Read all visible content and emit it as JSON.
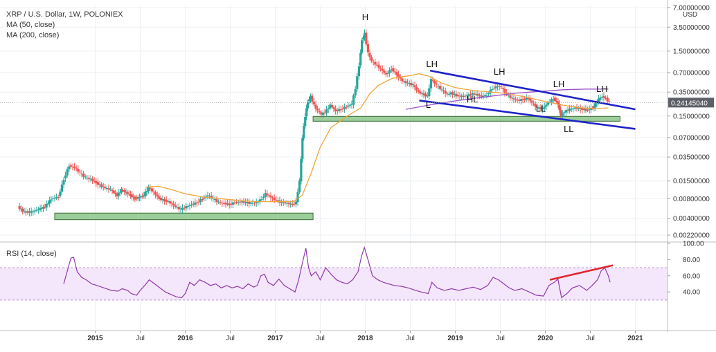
{
  "chart_data": {
    "type": "candlestick",
    "legend": {
      "title": "XRP / U.S. Dollar, 1W, POLONIEX",
      "ma50": "MA (50, close)",
      "ma200": "MA (200, close)"
    },
    "price_axis": {
      "unit": "USD",
      "scale": "log",
      "ticks": [
        "7.00000000",
        "3.50000000",
        "1.50000000",
        "0.70000000",
        "0.35000000",
        "0.15000000",
        "0.07000000",
        "0.03500000",
        "0.01500000",
        "0.00800000",
        "0.00400000",
        "0.00220000"
      ],
      "tick_values": [
        7.0,
        3.5,
        1.5,
        0.7,
        0.35,
        0.15,
        0.07,
        0.035,
        0.015,
        0.008,
        0.004,
        0.0022
      ],
      "current_price_label": "0.24145040",
      "current_price": 0.2414504
    },
    "time_axis": {
      "labels": [
        "2015",
        "Jul",
        "2016",
        "Jul",
        "2017",
        "Jul",
        "2018",
        "Jul",
        "2019",
        "Jul",
        "2020",
        "Jul",
        "2021"
      ],
      "label_times": [
        2015.0,
        2015.5,
        2016.0,
        2016.5,
        2017.0,
        2017.5,
        2018.0,
        2018.5,
        2019.0,
        2019.5,
        2020.0,
        2020.5,
        2021.0
      ],
      "range": [
        2014.05,
        2021.25
      ]
    },
    "price_series": [
      [
        2014.15,
        0.006
      ],
      [
        2014.22,
        0.005
      ],
      [
        2014.3,
        0.005
      ],
      [
        2014.38,
        0.0055
      ],
      [
        2014.45,
        0.006
      ],
      [
        2014.52,
        0.008
      ],
      [
        2014.6,
        0.0085
      ],
      [
        2014.66,
        0.016
      ],
      [
        2014.72,
        0.026
      ],
      [
        2014.78,
        0.024
      ],
      [
        2014.84,
        0.02
      ],
      [
        2014.9,
        0.017
      ],
      [
        2014.96,
        0.016
      ],
      [
        2015.02,
        0.014
      ],
      [
        2015.1,
        0.012
      ],
      [
        2015.18,
        0.011
      ],
      [
        2015.25,
        0.009
      ],
      [
        2015.3,
        0.011
      ],
      [
        2015.35,
        0.01
      ],
      [
        2015.4,
        0.009
      ],
      [
        2015.45,
        0.008
      ],
      [
        2015.5,
        0.0085
      ],
      [
        2015.55,
        0.009
      ],
      [
        2015.6,
        0.012
      ],
      [
        2015.66,
        0.01
      ],
      [
        2015.72,
        0.008
      ],
      [
        2015.78,
        0.0075
      ],
      [
        2015.84,
        0.007
      ],
      [
        2015.9,
        0.006
      ],
      [
        2015.96,
        0.0055
      ],
      [
        2016.02,
        0.006
      ],
      [
        2016.08,
        0.0065
      ],
      [
        2016.14,
        0.007
      ],
      [
        2016.2,
        0.008
      ],
      [
        2016.26,
        0.009
      ],
      [
        2016.32,
        0.008
      ],
      [
        2016.38,
        0.007
      ],
      [
        2016.44,
        0.0068
      ],
      [
        2016.5,
        0.0065
      ],
      [
        2016.56,
        0.007
      ],
      [
        2016.62,
        0.0072
      ],
      [
        2016.68,
        0.007
      ],
      [
        2016.74,
        0.0068
      ],
      [
        2016.8,
        0.007
      ],
      [
        2016.86,
        0.008
      ],
      [
        2016.9,
        0.0095
      ],
      [
        2016.96,
        0.0085
      ],
      [
        2017.02,
        0.0075
      ],
      [
        2017.08,
        0.007
      ],
      [
        2017.14,
        0.0068
      ],
      [
        2017.2,
        0.0065
      ],
      [
        2017.24,
        0.007
      ],
      [
        2017.28,
        0.015
      ],
      [
        2017.31,
        0.07
      ],
      [
        2017.34,
        0.15
      ],
      [
        2017.37,
        0.25
      ],
      [
        2017.4,
        0.3
      ],
      [
        2017.44,
        0.22
      ],
      [
        2017.48,
        0.18
      ],
      [
        2017.52,
        0.16
      ],
      [
        2017.56,
        0.17
      ],
      [
        2017.62,
        0.22
      ],
      [
        2017.68,
        0.18
      ],
      [
        2017.74,
        0.19
      ],
      [
        2017.8,
        0.21
      ],
      [
        2017.86,
        0.23
      ],
      [
        2017.9,
        0.4
      ],
      [
        2017.94,
        0.9
      ],
      [
        2017.97,
        2.2
      ],
      [
        2018.0,
        2.8
      ],
      [
        2018.04,
        1.4
      ],
      [
        2018.08,
        1.05
      ],
      [
        2018.12,
        0.95
      ],
      [
        2018.18,
        0.8
      ],
      [
        2018.24,
        0.65
      ],
      [
        2018.3,
        0.8
      ],
      [
        2018.36,
        0.65
      ],
      [
        2018.42,
        0.52
      ],
      [
        2018.48,
        0.48
      ],
      [
        2018.54,
        0.45
      ],
      [
        2018.6,
        0.35
      ],
      [
        2018.66,
        0.32
      ],
      [
        2018.7,
        0.3
      ],
      [
        2018.74,
        0.55
      ],
      [
        2018.8,
        0.45
      ],
      [
        2018.86,
        0.38
      ],
      [
        2018.92,
        0.32
      ],
      [
        2018.96,
        0.34
      ],
      [
        2019.02,
        0.31
      ],
      [
        2019.08,
        0.3
      ],
      [
        2019.14,
        0.31
      ],
      [
        2019.22,
        0.33
      ],
      [
        2019.3,
        0.3
      ],
      [
        2019.36,
        0.32
      ],
      [
        2019.42,
        0.4
      ],
      [
        2019.48,
        0.43
      ],
      [
        2019.52,
        0.42
      ],
      [
        2019.58,
        0.32
      ],
      [
        2019.64,
        0.28
      ],
      [
        2019.7,
        0.26
      ],
      [
        2019.76,
        0.27
      ],
      [
        2019.82,
        0.28
      ],
      [
        2019.86,
        0.24
      ],
      [
        2019.92,
        0.2
      ],
      [
        2019.98,
        0.195
      ],
      [
        2020.04,
        0.24
      ],
      [
        2020.1,
        0.28
      ],
      [
        2020.15,
        0.23
      ],
      [
        2020.18,
        0.15
      ],
      [
        2020.22,
        0.175
      ],
      [
        2020.28,
        0.19
      ],
      [
        2020.34,
        0.2
      ],
      [
        2020.4,
        0.195
      ],
      [
        2020.46,
        0.185
      ],
      [
        2020.5,
        0.19
      ],
      [
        2020.55,
        0.21
      ],
      [
        2020.6,
        0.27
      ],
      [
        2020.64,
        0.3
      ],
      [
        2020.68,
        0.28
      ],
      [
        2020.72,
        0.2414
      ]
    ],
    "ma50_series": [
      [
        2015.56,
        0.012
      ],
      [
        2015.7,
        0.0125
      ],
      [
        2015.85,
        0.011
      ],
      [
        2016.0,
        0.0095
      ],
      [
        2016.2,
        0.0085
      ],
      [
        2016.4,
        0.008
      ],
      [
        2016.6,
        0.0075
      ],
      [
        2016.8,
        0.0072
      ],
      [
        2017.0,
        0.0072
      ],
      [
        2017.2,
        0.0072
      ],
      [
        2017.3,
        0.009
      ],
      [
        2017.4,
        0.02
      ],
      [
        2017.5,
        0.05
      ],
      [
        2017.62,
        0.1
      ],
      [
        2017.8,
        0.15
      ],
      [
        2017.95,
        0.2
      ],
      [
        2018.05,
        0.33
      ],
      [
        2018.15,
        0.45
      ],
      [
        2018.3,
        0.57
      ],
      [
        2018.5,
        0.63
      ],
      [
        2018.6,
        0.67
      ],
      [
        2018.7,
        0.62
      ],
      [
        2018.85,
        0.48
      ],
      [
        2019.0,
        0.41
      ],
      [
        2019.2,
        0.37
      ],
      [
        2019.4,
        0.35
      ],
      [
        2019.6,
        0.33
      ],
      [
        2019.8,
        0.29
      ],
      [
        2020.0,
        0.25
      ],
      [
        2020.2,
        0.22
      ],
      [
        2020.4,
        0.2
      ],
      [
        2020.55,
        0.195
      ],
      [
        2020.7,
        0.2
      ]
    ],
    "ma200_series": [
      [
        2018.45,
        0.19
      ],
      [
        2018.7,
        0.22
      ],
      [
        2018.95,
        0.25
      ],
      [
        2019.2,
        0.28
      ],
      [
        2019.45,
        0.31
      ],
      [
        2019.7,
        0.34
      ],
      [
        2019.95,
        0.36
      ],
      [
        2020.2,
        0.38
      ],
      [
        2020.45,
        0.39
      ],
      [
        2020.7,
        0.39
      ]
    ],
    "trend_lines": [
      {
        "color": "#1e22c8",
        "points": [
          [
            2018.72,
            0.75
          ],
          [
            2021.0,
            0.19
          ]
        ]
      },
      {
        "color": "#1e22c8",
        "points": [
          [
            2018.6,
            0.26
          ],
          [
            2021.0,
            0.095
          ]
        ]
      }
    ],
    "support_zones": [
      {
        "t0": 2014.55,
        "t1": 2017.42,
        "low": 0.0038,
        "high": 0.0048
      },
      {
        "t0": 2017.42,
        "t1": 2020.83,
        "low": 0.125,
        "high": 0.148
      }
    ],
    "pattern_labels": [
      {
        "text": "H",
        "t": 2018.0,
        "price": 4.5
      },
      {
        "text": "LH",
        "t": 2018.74,
        "price": 0.85
      },
      {
        "text": "LH",
        "t": 2019.49,
        "price": 0.65
      },
      {
        "text": "LH",
        "t": 2020.15,
        "price": 0.42
      },
      {
        "text": "LH",
        "t": 2020.63,
        "price": 0.35
      },
      {
        "text": "L",
        "t": 2018.7,
        "price": 0.2
      },
      {
        "text": "HL",
        "t": 2019.19,
        "price": 0.245
      },
      {
        "text": "LL",
        "t": 2019.95,
        "price": 0.175
      },
      {
        "text": "LL",
        "t": 2020.26,
        "price": 0.085
      }
    ],
    "rsi": {
      "title": "RSI (14, close)",
      "ticks": [
        "100.00",
        "80.00",
        "60.00",
        "40.00"
      ],
      "tick_values": [
        100,
        80,
        60,
        40
      ],
      "band": [
        30,
        70
      ],
      "series": [
        [
          2014.65,
          50
        ],
        [
          2014.7,
          70
        ],
        [
          2014.73,
          82
        ],
        [
          2014.76,
          83
        ],
        [
          2014.8,
          65
        ],
        [
          2014.85,
          58
        ],
        [
          2014.9,
          55
        ],
        [
          2014.96,
          50
        ],
        [
          2015.02,
          48
        ],
        [
          2015.1,
          45
        ],
        [
          2015.18,
          42
        ],
        [
          2015.25,
          41
        ],
        [
          2015.3,
          44
        ],
        [
          2015.36,
          42
        ],
        [
          2015.4,
          38
        ],
        [
          2015.46,
          36
        ],
        [
          2015.5,
          42
        ],
        [
          2015.55,
          48
        ],
        [
          2015.6,
          55
        ],
        [
          2015.66,
          50
        ],
        [
          2015.72,
          45
        ],
        [
          2015.78,
          40
        ],
        [
          2015.84,
          37
        ],
        [
          2015.9,
          34
        ],
        [
          2015.96,
          33
        ],
        [
          2016.0,
          38
        ],
        [
          2016.05,
          52
        ],
        [
          2016.1,
          48
        ],
        [
          2016.16,
          55
        ],
        [
          2016.22,
          52
        ],
        [
          2016.28,
          48
        ],
        [
          2016.34,
          50
        ],
        [
          2016.4,
          45
        ],
        [
          2016.46,
          48
        ],
        [
          2016.52,
          45
        ],
        [
          2016.58,
          47
        ],
        [
          2016.64,
          44
        ],
        [
          2016.7,
          50
        ],
        [
          2016.76,
          46
        ],
        [
          2016.8,
          48
        ],
        [
          2016.84,
          60
        ],
        [
          2016.88,
          62
        ],
        [
          2016.92,
          52
        ],
        [
          2016.98,
          48
        ],
        [
          2017.04,
          56
        ],
        [
          2017.1,
          48
        ],
        [
          2017.16,
          44
        ],
        [
          2017.22,
          40
        ],
        [
          2017.26,
          55
        ],
        [
          2017.3,
          75
        ],
        [
          2017.34,
          94
        ],
        [
          2017.37,
          70
        ],
        [
          2017.4,
          60
        ],
        [
          2017.45,
          65
        ],
        [
          2017.5,
          55
        ],
        [
          2017.56,
          70
        ],
        [
          2017.62,
          62
        ],
        [
          2017.68,
          55
        ],
        [
          2017.74,
          52
        ],
        [
          2017.8,
          50
        ],
        [
          2017.86,
          55
        ],
        [
          2017.92,
          65
        ],
        [
          2017.96,
          85
        ],
        [
          2017.99,
          95
        ],
        [
          2018.03,
          80
        ],
        [
          2018.08,
          60
        ],
        [
          2018.14,
          55
        ],
        [
          2018.2,
          52
        ],
        [
          2018.26,
          50
        ],
        [
          2018.32,
          48
        ],
        [
          2018.4,
          47
        ],
        [
          2018.48,
          45
        ],
        [
          2018.56,
          42
        ],
        [
          2018.62,
          40
        ],
        [
          2018.7,
          38
        ],
        [
          2018.74,
          52
        ],
        [
          2018.8,
          45
        ],
        [
          2018.88,
          42
        ],
        [
          2018.96,
          44
        ],
        [
          2019.04,
          42
        ],
        [
          2019.12,
          44
        ],
        [
          2019.2,
          46
        ],
        [
          2019.28,
          43
        ],
        [
          2019.36,
          48
        ],
        [
          2019.42,
          58
        ],
        [
          2019.48,
          55
        ],
        [
          2019.54,
          50
        ],
        [
          2019.6,
          45
        ],
        [
          2019.66,
          42
        ],
        [
          2019.74,
          44
        ],
        [
          2019.82,
          40
        ],
        [
          2019.9,
          36
        ],
        [
          2019.98,
          35
        ],
        [
          2020.04,
          48
        ],
        [
          2020.1,
          52
        ],
        [
          2020.14,
          56
        ],
        [
          2020.18,
          33
        ],
        [
          2020.24,
          38
        ],
        [
          2020.3,
          45
        ],
        [
          2020.38,
          48
        ],
        [
          2020.46,
          42
        ],
        [
          2020.52,
          48
        ],
        [
          2020.58,
          55
        ],
        [
          2020.62,
          66
        ],
        [
          2020.66,
          70
        ],
        [
          2020.7,
          60
        ],
        [
          2020.72,
          52
        ]
      ],
      "divergence_line": [
        [
          2020.05,
          55
        ],
        [
          2020.75,
          73
        ]
      ]
    }
  }
}
